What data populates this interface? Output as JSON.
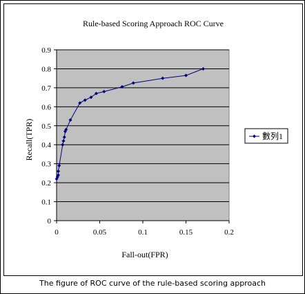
{
  "caption": "The figure of ROC curve of the rule-based scoring approach",
  "chart_data": {
    "type": "line",
    "title": "Rule-based Scoring Approach ROC Curve",
    "xlabel": "Fall-out(FPR)",
    "ylabel": "Recall(TPR)",
    "xlim": [
      0,
      0.2
    ],
    "ylim": [
      0,
      0.9
    ],
    "x_ticks": [
      "0",
      "0.05",
      "0.1",
      "0.15",
      "0.2"
    ],
    "y_ticks": [
      "0",
      "0.1",
      "0.2",
      "0.3",
      "0.4",
      "0.5",
      "0.6",
      "0.7",
      "0.8",
      "0.9"
    ],
    "grid": "horizontal",
    "legend_position": "right",
    "plot_background": "#c0c0c0",
    "series_color": "#000080",
    "series": [
      {
        "name": "數列1",
        "points": [
          [
            0.0,
            0.22
          ],
          [
            0.001,
            0.23
          ],
          [
            0.002,
            0.24
          ],
          [
            0.002,
            0.26
          ],
          [
            0.003,
            0.29
          ],
          [
            0.007,
            0.4
          ],
          [
            0.008,
            0.42
          ],
          [
            0.009,
            0.44
          ],
          [
            0.01,
            0.47
          ],
          [
            0.011,
            0.48
          ],
          [
            0.016,
            0.53
          ],
          [
            0.027,
            0.62
          ],
          [
            0.033,
            0.635
          ],
          [
            0.04,
            0.65
          ],
          [
            0.046,
            0.67
          ],
          [
            0.055,
            0.68
          ],
          [
            0.076,
            0.705
          ],
          [
            0.089,
            0.725
          ],
          [
            0.123,
            0.75
          ],
          [
            0.15,
            0.765
          ],
          [
            0.17,
            0.8
          ]
        ]
      }
    ]
  }
}
